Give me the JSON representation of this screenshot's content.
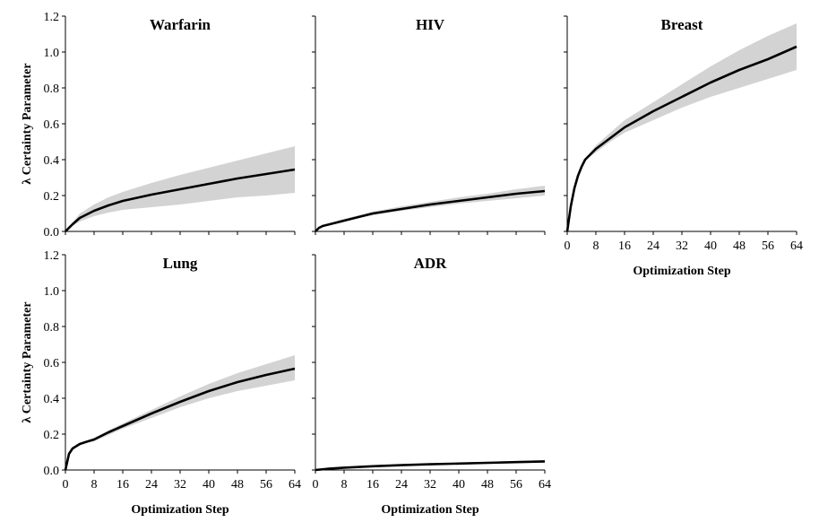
{
  "colors": {
    "band": "#d3d3d3",
    "line": "#000000",
    "axis": "#000000"
  },
  "chart_data": [
    {
      "type": "line",
      "title": "Warfarin",
      "xlabel": "",
      "ylabel": "λ Certainty Parameter",
      "xlim": [
        0,
        64
      ],
      "ylim": [
        0,
        1.2
      ],
      "xticks": [],
      "yticks": [
        "0.0",
        "0.2",
        "0.4",
        "0.6",
        "0.8",
        "1.0",
        "1.2"
      ],
      "series": [
        {
          "name": "mean",
          "x": [
            0,
            2,
            4,
            8,
            12,
            16,
            24,
            32,
            40,
            48,
            56,
            64
          ],
          "y": [
            0,
            0.04,
            0.075,
            0.115,
            0.145,
            0.17,
            0.205,
            0.235,
            0.265,
            0.295,
            0.32,
            0.345
          ]
        },
        {
          "name": "upper",
          "x": [
            0,
            2,
            4,
            8,
            12,
            16,
            24,
            32,
            40,
            48,
            56,
            64
          ],
          "y": [
            0,
            0.05,
            0.1,
            0.15,
            0.19,
            0.22,
            0.27,
            0.315,
            0.355,
            0.395,
            0.435,
            0.475
          ]
        },
        {
          "name": "lower",
          "x": [
            0,
            2,
            4,
            8,
            12,
            16,
            24,
            32,
            40,
            48,
            56,
            64
          ],
          "y": [
            0,
            0.03,
            0.055,
            0.085,
            0.105,
            0.12,
            0.135,
            0.15,
            0.17,
            0.19,
            0.2,
            0.215
          ]
        }
      ]
    },
    {
      "type": "line",
      "title": "HIV",
      "xlabel": "",
      "ylabel": "",
      "xlim": [
        0,
        64
      ],
      "ylim": [
        0,
        1.2
      ],
      "xticks": [],
      "yticks": [],
      "series": [
        {
          "name": "mean",
          "x": [
            0,
            1,
            2,
            4,
            8,
            12,
            16,
            24,
            32,
            40,
            48,
            56,
            64
          ],
          "y": [
            0,
            0.02,
            0.03,
            0.04,
            0.06,
            0.08,
            0.1,
            0.125,
            0.15,
            0.17,
            0.19,
            0.21,
            0.225
          ]
        },
        {
          "name": "upper",
          "x": [
            0,
            1,
            2,
            4,
            8,
            12,
            16,
            24,
            32,
            40,
            48,
            56,
            64
          ],
          "y": [
            0,
            0.025,
            0.035,
            0.045,
            0.07,
            0.09,
            0.11,
            0.14,
            0.165,
            0.19,
            0.21,
            0.235,
            0.255
          ]
        },
        {
          "name": "lower",
          "x": [
            0,
            1,
            2,
            4,
            8,
            12,
            16,
            24,
            32,
            40,
            48,
            56,
            64
          ],
          "y": [
            0,
            0.015,
            0.025,
            0.035,
            0.055,
            0.075,
            0.09,
            0.115,
            0.135,
            0.155,
            0.17,
            0.185,
            0.2
          ]
        }
      ]
    },
    {
      "type": "line",
      "title": "Breast",
      "xlabel": "Optimization Step",
      "ylabel": "",
      "xlim": [
        0,
        64
      ],
      "ylim": [
        0,
        1.2
      ],
      "xticks": [
        "0",
        "8",
        "16",
        "24",
        "32",
        "40",
        "48",
        "56",
        "64"
      ],
      "yticks": [],
      "series": [
        {
          "name": "mean",
          "x": [
            0,
            1,
            2,
            3,
            4,
            5,
            6,
            8,
            12,
            16,
            24,
            32,
            40,
            48,
            56,
            64
          ],
          "y": [
            0,
            0.14,
            0.24,
            0.31,
            0.36,
            0.4,
            0.42,
            0.46,
            0.52,
            0.58,
            0.67,
            0.75,
            0.83,
            0.9,
            0.96,
            1.03
          ]
        },
        {
          "name": "upper",
          "x": [
            0,
            1,
            2,
            3,
            4,
            5,
            6,
            8,
            12,
            16,
            24,
            32,
            40,
            48,
            56,
            64
          ],
          "y": [
            0,
            0.15,
            0.25,
            0.32,
            0.37,
            0.41,
            0.43,
            0.48,
            0.55,
            0.62,
            0.72,
            0.82,
            0.92,
            1.01,
            1.09,
            1.16
          ]
        },
        {
          "name": "lower",
          "x": [
            0,
            1,
            2,
            3,
            4,
            5,
            6,
            8,
            12,
            16,
            24,
            32,
            40,
            48,
            56,
            64
          ],
          "y": [
            0,
            0.13,
            0.23,
            0.3,
            0.35,
            0.39,
            0.41,
            0.44,
            0.5,
            0.55,
            0.62,
            0.69,
            0.75,
            0.8,
            0.85,
            0.9
          ]
        }
      ]
    },
    {
      "type": "line",
      "title": "Lung",
      "xlabel": "Optimization Step",
      "ylabel": "λ Certainty Parameter",
      "xlim": [
        0,
        64
      ],
      "ylim": [
        0,
        1.2
      ],
      "xticks": [
        "0",
        "8",
        "16",
        "24",
        "32",
        "40",
        "48",
        "56",
        "64"
      ],
      "yticks": [
        "0.0",
        "0.2",
        "0.4",
        "0.6",
        "0.8",
        "1.0",
        "1.2"
      ],
      "series": [
        {
          "name": "mean",
          "x": [
            0,
            1,
            2,
            4,
            6,
            8,
            12,
            16,
            24,
            32,
            40,
            48,
            56,
            64
          ],
          "y": [
            0,
            0.09,
            0.12,
            0.145,
            0.158,
            0.17,
            0.21,
            0.245,
            0.315,
            0.38,
            0.44,
            0.49,
            0.53,
            0.565
          ]
        },
        {
          "name": "upper",
          "x": [
            0,
            1,
            2,
            4,
            6,
            8,
            12,
            16,
            24,
            32,
            40,
            48,
            56,
            64
          ],
          "y": [
            0,
            0.095,
            0.125,
            0.15,
            0.163,
            0.18,
            0.22,
            0.26,
            0.335,
            0.41,
            0.48,
            0.54,
            0.59,
            0.64
          ]
        },
        {
          "name": "lower",
          "x": [
            0,
            1,
            2,
            4,
            6,
            8,
            12,
            16,
            24,
            32,
            40,
            48,
            56,
            64
          ],
          "y": [
            0,
            0.085,
            0.115,
            0.14,
            0.152,
            0.16,
            0.195,
            0.23,
            0.29,
            0.35,
            0.4,
            0.44,
            0.47,
            0.5
          ]
        }
      ]
    },
    {
      "type": "line",
      "title": "ADR",
      "xlabel": "Optimization Step",
      "ylabel": "",
      "xlim": [
        0,
        64
      ],
      "ylim": [
        0,
        1.2
      ],
      "xticks": [
        "0",
        "8",
        "16",
        "24",
        "32",
        "40",
        "48",
        "56",
        "64"
      ],
      "yticks": [],
      "series": [
        {
          "name": "mean",
          "x": [
            0,
            4,
            8,
            16,
            24,
            32,
            40,
            48,
            56,
            64
          ],
          "y": [
            0,
            0.008,
            0.013,
            0.021,
            0.027,
            0.032,
            0.036,
            0.04,
            0.044,
            0.048
          ]
        },
        {
          "name": "upper",
          "x": [
            0,
            4,
            8,
            16,
            24,
            32,
            40,
            48,
            56,
            64
          ],
          "y": [
            0,
            0.009,
            0.015,
            0.024,
            0.031,
            0.036,
            0.041,
            0.046,
            0.05,
            0.055
          ]
        },
        {
          "name": "lower",
          "x": [
            0,
            4,
            8,
            16,
            24,
            32,
            40,
            48,
            56,
            64
          ],
          "y": [
            0,
            0.007,
            0.011,
            0.018,
            0.023,
            0.028,
            0.031,
            0.034,
            0.038,
            0.041
          ]
        }
      ]
    }
  ]
}
